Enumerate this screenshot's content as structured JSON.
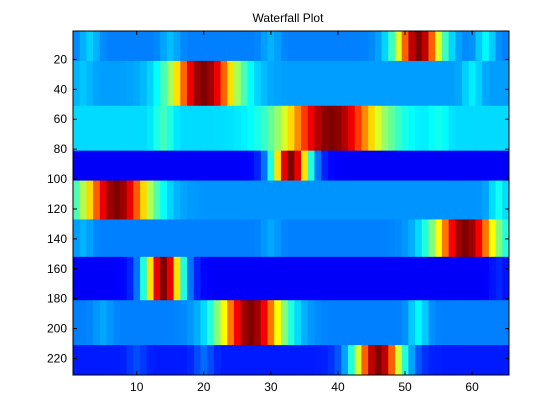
{
  "chart_data": {
    "type": "heatmap",
    "title": "Waterfall Plot",
    "xlabel": "",
    "ylabel": "",
    "xlim": [
      0.5,
      65.5
    ],
    "ylim": [
      1,
      231
    ],
    "y_reversed": true,
    "colormap": "jet",
    "grid": false,
    "x_ticks": [
      10,
      20,
      30,
      40,
      50,
      60
    ],
    "y_ticks": [
      20,
      40,
      60,
      80,
      100,
      120,
      140,
      160,
      180,
      200,
      220
    ],
    "x_columns": 65,
    "bands": [
      {
        "y_start": 1,
        "y_end": 21,
        "peak_x": 52,
        "peak_width": 2.4,
        "base": 0.25,
        "bumps": [
          {
            "x": 3,
            "amp": 0.08
          },
          {
            "x": 15,
            "amp": 0.06
          },
          {
            "x": 30,
            "amp": 0.05
          },
          {
            "x": 62,
            "amp": 0.12
          }
        ]
      },
      {
        "y_start": 21,
        "y_end": 51,
        "peak_x": 20,
        "peak_width": 3.5,
        "base": 0.28,
        "bumps": [
          {
            "x": 2,
            "amp": 0.04
          },
          {
            "x": 60,
            "amp": 0.08
          }
        ]
      },
      {
        "y_start": 51,
        "y_end": 81,
        "peak_x": 39,
        "peak_width": 5.0,
        "base": 0.34,
        "bumps": [
          {
            "x": 14,
            "amp": 0.1
          },
          {
            "x": 55,
            "amp": 0.05
          }
        ]
      },
      {
        "y_start": 81,
        "y_end": 101,
        "peak_x": 33,
        "peak_width": 2.0,
        "base": 0.12,
        "bumps": []
      },
      {
        "y_start": 101,
        "y_end": 127,
        "peak_x": 7,
        "peak_width": 3.6,
        "base": 0.27,
        "bumps": [
          {
            "x": 64,
            "amp": 0.12
          }
        ]
      },
      {
        "y_start": 127,
        "y_end": 152,
        "peak_x": 59,
        "peak_width": 3.4,
        "base": 0.25,
        "bumps": [
          {
            "x": 2,
            "amp": 0.05
          },
          {
            "x": 30,
            "amp": 0.04
          }
        ]
      },
      {
        "y_start": 152,
        "y_end": 181,
        "peak_x": 14,
        "peak_width": 2.0,
        "base": 0.12,
        "bumps": [
          {
            "x": 64,
            "amp": 0.04
          }
        ]
      },
      {
        "y_start": 181,
        "y_end": 211,
        "peak_x": 27,
        "peak_width": 3.4,
        "base": 0.25,
        "bumps": [
          {
            "x": 52,
            "amp": 0.12
          },
          {
            "x": 5,
            "amp": 0.04
          }
        ]
      },
      {
        "y_start": 211,
        "y_end": 231,
        "peak_x": 46,
        "peak_width": 2.6,
        "base": 0.15,
        "bumps": [
          {
            "x": 20,
            "amp": 0.08
          },
          {
            "x": 10,
            "amp": 0.05
          }
        ]
      }
    ]
  }
}
